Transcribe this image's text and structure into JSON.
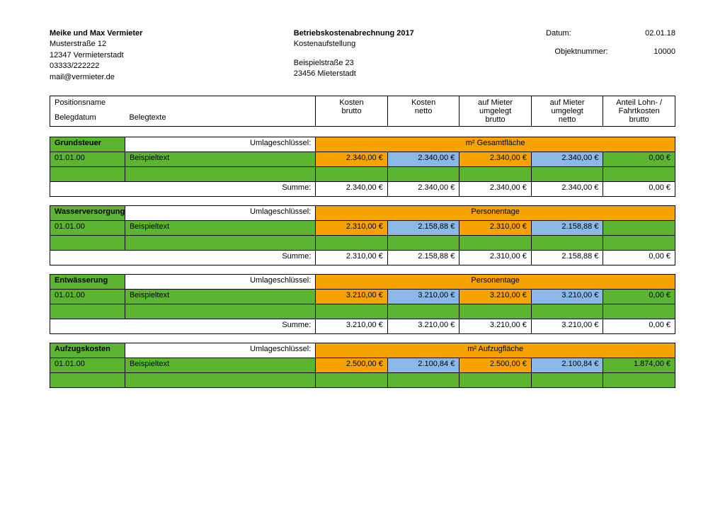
{
  "colors": {
    "green": "#5cb531",
    "orange": "#f6a300",
    "blue": "#8ab9e8",
    "white": "#ffffff"
  },
  "colWidths": [
    "12%",
    "30.5%",
    "11.5%",
    "11.5%",
    "11.5%",
    "11.5%",
    "11.5%"
  ],
  "header": {
    "landlord": {
      "name": "Meike und Max Vermieter",
      "street": "Musterstraße 12",
      "city": "12347 Vermieterstadt",
      "phone": "03333/222222",
      "mail": "mail@vermieter.de"
    },
    "doc": {
      "title": "Betriebskostenabrechnung 2017",
      "sub": "Kostenaufstellung",
      "objStreet": "Beispielstraße 23",
      "objCity": "23456 Mieterstadt"
    },
    "meta": {
      "dateLabel": "Datum:",
      "date": "02.01.18",
      "objNoLabel": "Objektnummer:",
      "objNo": "10000"
    }
  },
  "tableHeader": {
    "r1c1": "Positionsname",
    "r2c1": "Belegdatum",
    "r2c2": "Belegtexte",
    "c3a": "Kosten",
    "c3b": "brutto",
    "c4a": "Kosten",
    "c4b": "netto",
    "c5a": "auf Mieter",
    "c5b": "umgelegt",
    "c5c": "brutto",
    "c6a": "auf Mieter",
    "c6b": "umgelegt",
    "c6c": "netto",
    "c7a": "Anteil Lohn- /",
    "c7b": "Fahrtkosten",
    "c7c": "brutto"
  },
  "labels": {
    "keyLabel": "Umlageschlüssel:",
    "sumLabel": "Summe:"
  },
  "sections": [
    {
      "name": "Grundsteuer",
      "key": "m² Gesamtfläche",
      "rowDate": "01.01.00",
      "rowText": "Beispieltext",
      "vals": [
        "2.340,00 €",
        "2.340,00 €",
        "2.340,00 €",
        "2.340,00 €",
        "0,00 €"
      ],
      "sums": [
        "2.340,00 €",
        "2.340,00 €",
        "2.340,00 €",
        "2.340,00 €",
        "0,00 €"
      ],
      "hasSum": true
    },
    {
      "name": "Wasserversorgung",
      "key": "Personentage",
      "rowDate": "01.01.00",
      "rowText": "Beispieltext",
      "vals": [
        "2.310,00 €",
        "2.158,88 €",
        "2.310,00 €",
        "2.158,88 €",
        ""
      ],
      "sums": [
        "2.310,00 €",
        "2.158,88 €",
        "2.310,00 €",
        "2.158,88 €",
        "0,00 €"
      ],
      "hasSum": true
    },
    {
      "name": "Entwässerung",
      "key": "Personentage",
      "rowDate": "01.01.00",
      "rowText": "Beispieltext",
      "vals": [
        "3.210,00 €",
        "3.210,00 €",
        "3.210,00 €",
        "3.210,00 €",
        "0,00 €"
      ],
      "sums": [
        "3.210,00 €",
        "3.210,00 €",
        "3.210,00 €",
        "3.210,00 €",
        "0,00 €"
      ],
      "hasSum": true
    },
    {
      "name": "Aufzugskosten",
      "key": "m² Aufzugfläche",
      "rowDate": "01.01.00",
      "rowText": "Beispieltext",
      "vals": [
        "2.500,00 €",
        "2.100,84 €",
        "2.500,00 €",
        "2.100,84 €",
        "1.874,00 €"
      ],
      "sums": [],
      "hasSum": false
    }
  ]
}
